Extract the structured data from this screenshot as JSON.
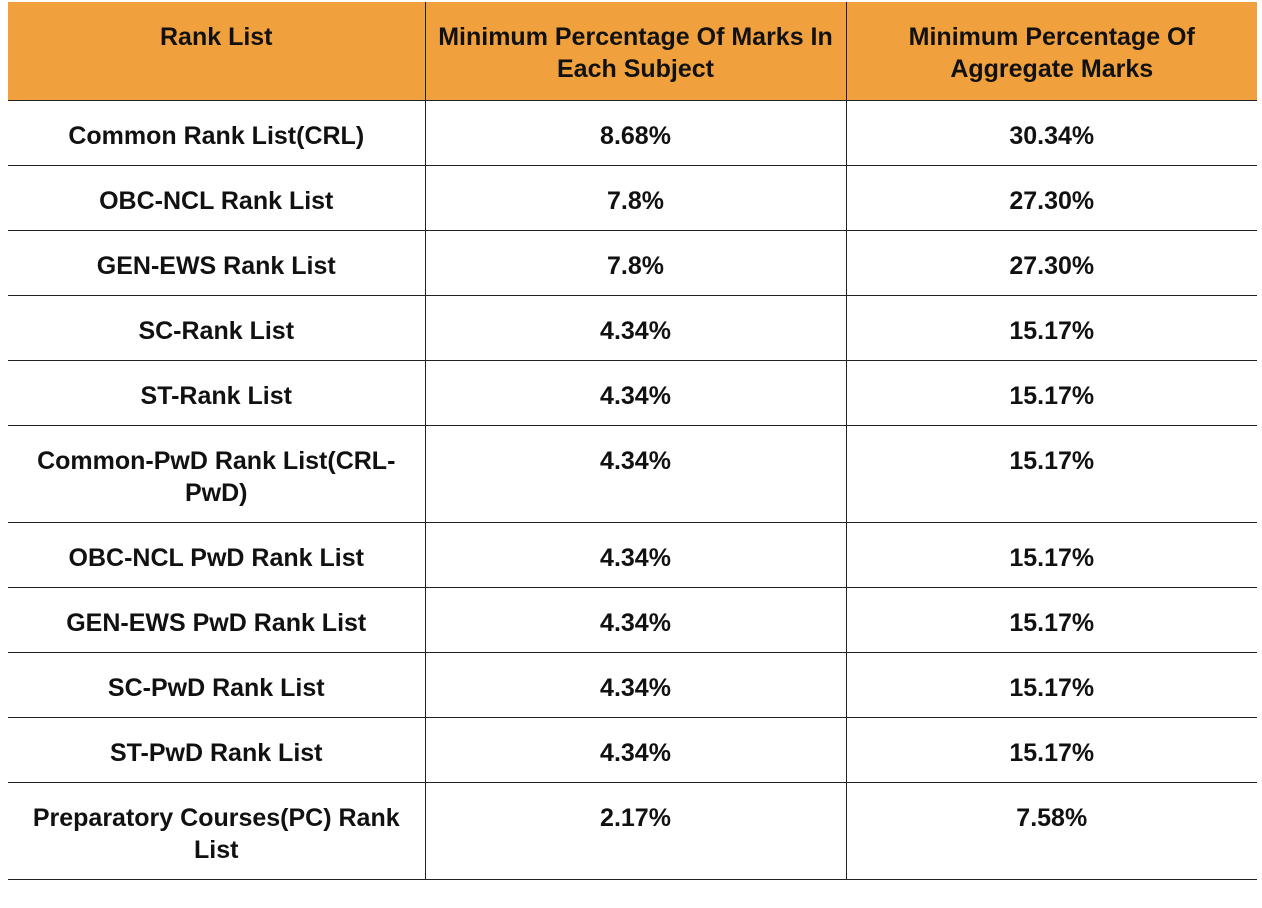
{
  "table": {
    "headers": [
      "Rank List",
      "Minimum Percentage Of Marks In Each Subject",
      "Minimum Percentage Of Aggregate Marks"
    ],
    "rows": [
      [
        "Common Rank List(CRL)",
        "8.68%",
        "30.34%"
      ],
      [
        "OBC-NCL Rank List",
        "7.8%",
        "27.30%"
      ],
      [
        "GEN-EWS Rank List",
        "7.8%",
        "27.30%"
      ],
      [
        "SC-Rank List",
        "4.34%",
        "15.17%"
      ],
      [
        "ST-Rank List",
        "4.34%",
        "15.17%"
      ],
      [
        "Common-PwD Rank List(CRL-PwD)",
        "4.34%",
        "15.17%"
      ],
      [
        "OBC-NCL PwD Rank List",
        "4.34%",
        "15.17%"
      ],
      [
        "GEN-EWS PwD Rank List",
        "4.34%",
        "15.17%"
      ],
      [
        "SC-PwD Rank List",
        "4.34%",
        "15.17%"
      ],
      [
        "ST-PwD Rank List",
        "4.34%",
        "15.17%"
      ],
      [
        "Preparatory Courses(PC) Rank List",
        "2.17%",
        "7.58%"
      ]
    ]
  },
  "colors": {
    "header_background": "#f0a03c",
    "border": "#222222",
    "text": "#111111"
  }
}
